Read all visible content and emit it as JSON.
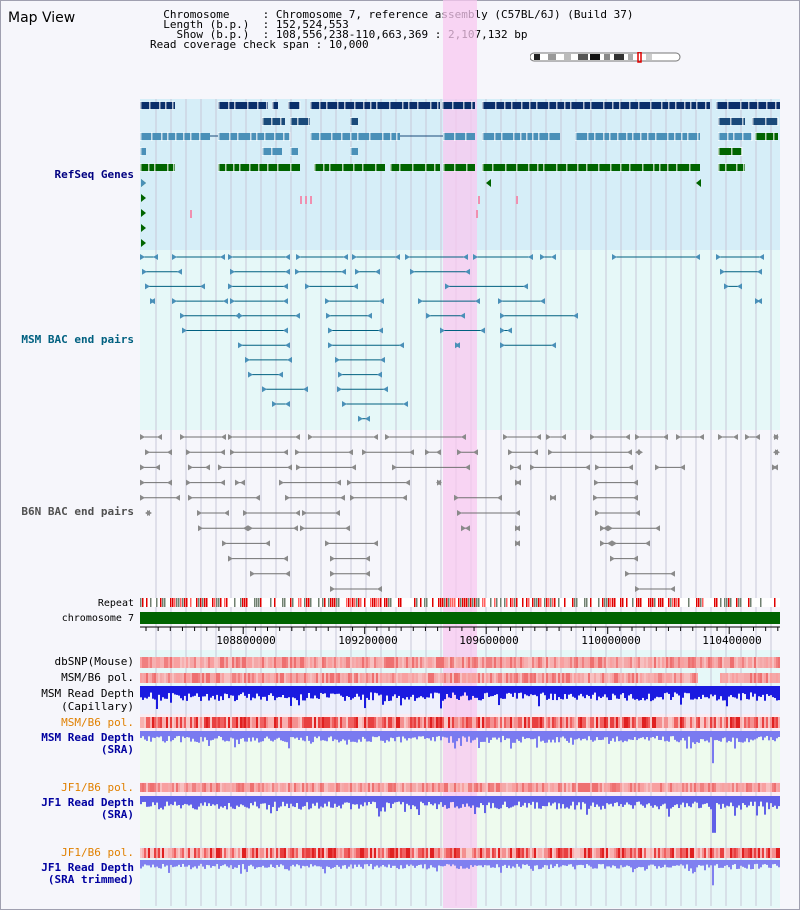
{
  "app": {
    "title": "Map View"
  },
  "info": {
    "chromosome_label": "Chromosome",
    "chromosome_value": "Chromosome 7, reference assembly (C57BL/6J) (Build 37)",
    "length_label": "Length (b.p.)",
    "length_value": "152,524,553",
    "show_label": "Show (b.p.)",
    "show_value": "108,556,238-110,663,369 : 2,107,132 bp",
    "read_check_label": "Read coverage check span",
    "read_check_value": "10,000"
  },
  "tracks": {
    "refseq": "RefSeq Genes",
    "msm_bac": "MSM BAC end pairs",
    "b6n_bac": "B6N BAC end pairs",
    "repeat": "Repeat",
    "chromosome": "chromosome 7",
    "dbsnp": "dbSNP(Mouse)",
    "msm_b6_pol_1": "MSM/B6 pol.",
    "msm_read_depth_cap": "MSM Read Depth",
    "msm_read_depth_cap_sub": "(Capillary)",
    "msm_b6_pol_2": "MSM/B6 pol.",
    "msm_read_depth_sra": "MSM Read Depth",
    "msm_read_depth_sra_sub": "(SRA)",
    "jf1_b6_pol_1": "JF1/B6 pol.",
    "jf1_read_depth": "JF1 Read Depth",
    "jf1_read_depth_sub": "(SRA)",
    "jf1_b6_pol_2": "JF1/B6 pol.",
    "jf1_read_depth_trim": "JF1 Read Depth",
    "jf1_read_depth_trim_sub": "(SRA trimmed)"
  },
  "axis": {
    "ticks": [
      "108800000",
      "109200000",
      "109600000",
      "110000000",
      "110400000"
    ]
  },
  "colors": {
    "refseq_label": "#000080",
    "msm_label": "#006080",
    "b6n_label": "#505050",
    "orange_label": "#e08000",
    "blue_label": "#0000a0",
    "highlight": "#f8c8f0",
    "chromosome_bar": "#006400"
  }
}
